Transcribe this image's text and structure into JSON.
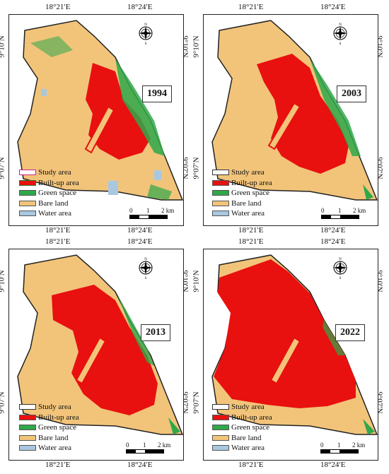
{
  "legend": {
    "study_area": "Study area",
    "built_up": "Built-up area",
    "green": "Green space",
    "bare": "Bare land",
    "water": "Water area"
  },
  "colors": {
    "study_area": "#ffffff",
    "built_up": "#e8110f",
    "built_up_1994_border": "#2a7a2a",
    "green": "#2fa84a",
    "bare": "#f2c47a",
    "water": "#a9c8e0",
    "study_area_border_1994": "#d0208f"
  },
  "coords": {
    "lon_left": "18°21′E",
    "lon_right": "18°24′E",
    "lat_top": "9°10′N",
    "lat_bottom": "9°07′N"
  },
  "scale": {
    "zero": "0",
    "one": "1",
    "two": "2 km"
  },
  "compass": {
    "n": "N",
    "s": "S",
    "e": "E",
    "w": "W",
    "icon": "compass-rose-icon"
  },
  "panels": [
    {
      "year": "1994",
      "built_up_fraction_hint": "low"
    },
    {
      "year": "2003",
      "built_up_fraction_hint": "medium"
    },
    {
      "year": "2013",
      "built_up_fraction_hint": "medium-high"
    },
    {
      "year": "2022",
      "built_up_fraction_hint": "high"
    }
  ]
}
